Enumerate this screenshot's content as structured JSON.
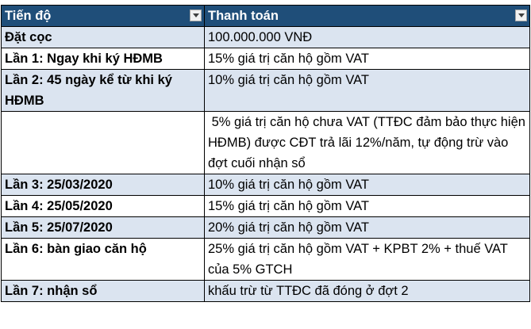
{
  "table": {
    "headers": [
      "Tiến độ",
      "Thanh toán"
    ],
    "rows": [
      {
        "stage": "Đặt cọc",
        "payment": "100.000.000 VNĐ"
      },
      {
        "stage": "Lần 1: Ngay khi ký HĐMB",
        "payment": "15% giá trị căn hộ gồm VAT"
      },
      {
        "stage": "Lần 2: 45 ngày kể từ khi ký HĐMB",
        "payment": "10% giá trị căn hộ gồm VAT"
      },
      {
        "stage": "",
        "payment": " 5% giá trị căn hộ chưa VAT (TTĐC đảm bảo thực hiện HĐMB) được CĐT trả lãi 12%/năm, tự động trừ vào đợt cuối nhận sổ"
      },
      {
        "stage": "Lần 3: 25/03/2020",
        "payment": "10% giá trị căn hộ gồm VAT"
      },
      {
        "stage": "Lần 4: 25/05/2020",
        "payment": "15% giá trị căn hộ gồm VAT"
      },
      {
        "stage": "Lần 5: 25/07/2020",
        "payment": "20% giá trị căn hộ gồm VAT"
      },
      {
        "stage": "Lần 6: bàn giao căn hộ",
        "payment": "25% giá trị căn hộ gồm VAT + KPBT 2% + thuế VAT của 5% GTCH"
      },
      {
        "stage": "Lần 7: nhận sổ",
        "payment": "khấu trừ từ TTĐC đã đóng ở đợt 2"
      }
    ]
  },
  "colors": {
    "header_bg": "#1f4e79",
    "band_bg": "#dbe4f0"
  },
  "icons": {
    "filter": "filter-dropdown-icon"
  }
}
